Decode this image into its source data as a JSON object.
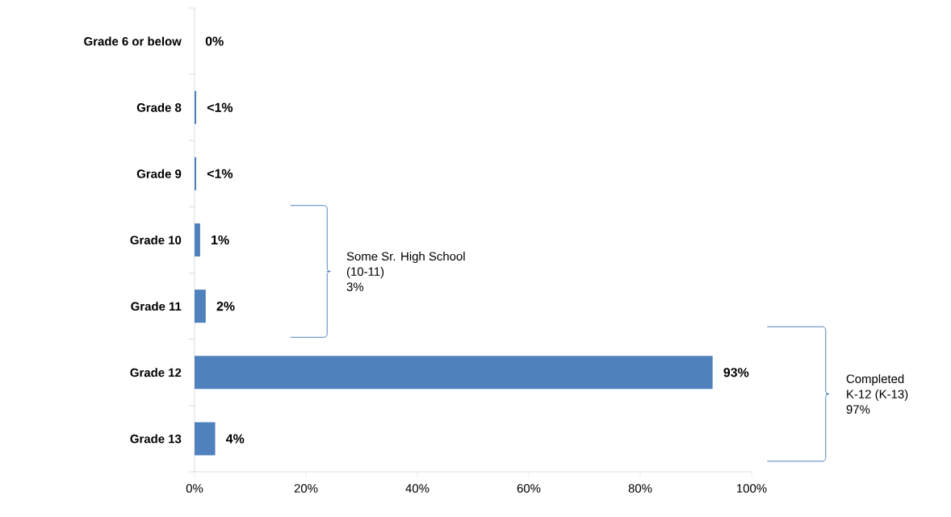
{
  "chart_data": {
    "type": "bar",
    "orientation": "horizontal",
    "categories": [
      "Grade 6 or below",
      "Grade 8",
      "Grade 9",
      "Grade 10",
      "Grade 11",
      "Grade 12",
      "Grade 13"
    ],
    "values": [
      0,
      0.3,
      0.3,
      1,
      2,
      93,
      3.7
    ],
    "value_labels": [
      "0%",
      "<1%",
      "<1%",
      "1%",
      "2%",
      "93%",
      "4%"
    ],
    "color": "#4f81bd",
    "xlim": [
      0,
      100
    ],
    "xticks": [
      {
        "value": 0,
        "label": "0%"
      },
      {
        "value": 20,
        "label": "20%"
      },
      {
        "value": 40,
        "label": "40%"
      },
      {
        "value": 60,
        "label": "60%"
      },
      {
        "value": 80,
        "label": "80%"
      },
      {
        "value": 100,
        "label": "100%"
      }
    ],
    "grid": false,
    "annotations": [
      "Some Sr. High School",
      "(10-11)",
      "3%",
      "Completed",
      "K-12 (K-13)",
      "97%"
    ]
  }
}
